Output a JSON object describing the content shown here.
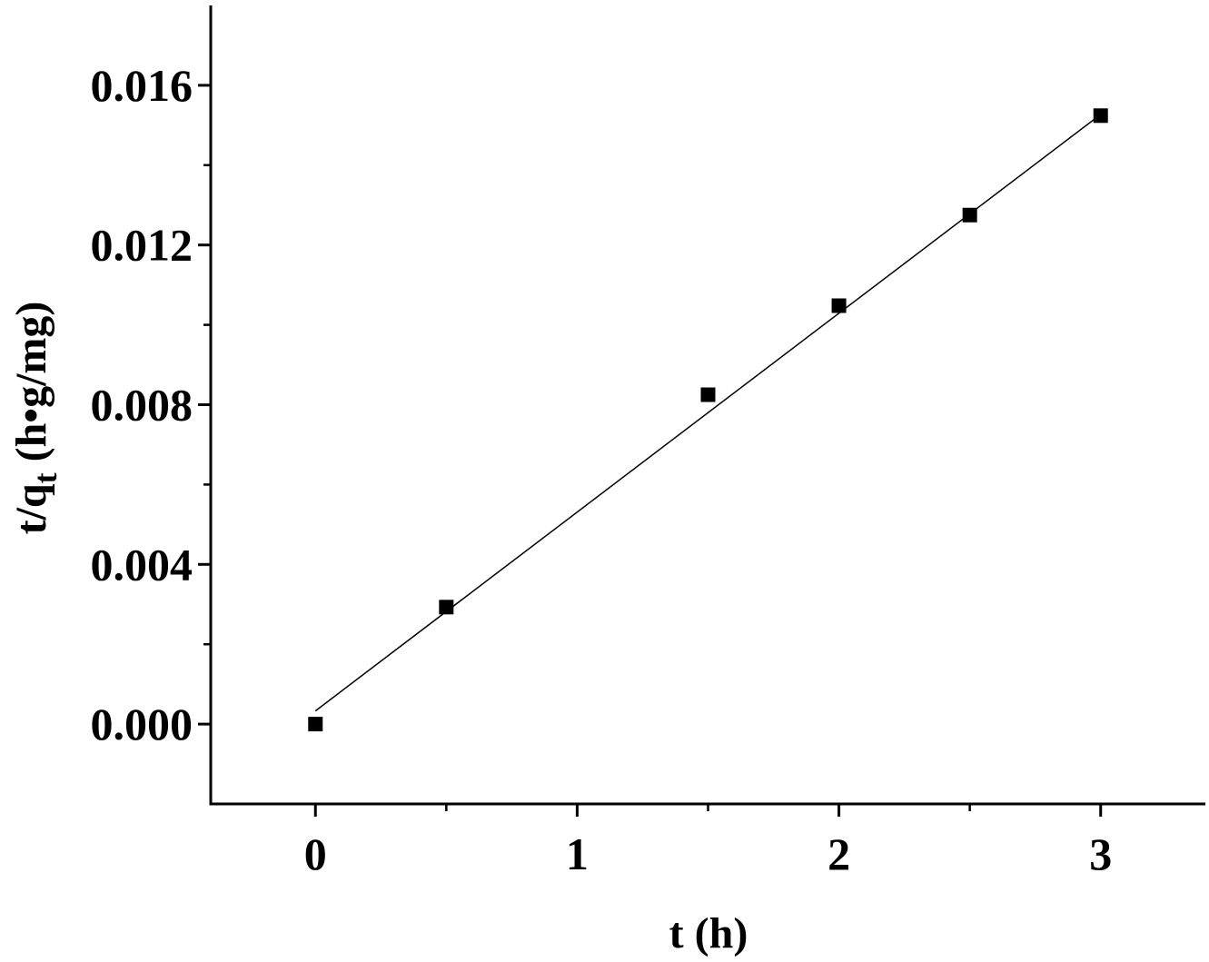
{
  "chart_data": {
    "type": "scatter",
    "xlabel": "t (h)",
    "ylabel": {
      "main": "t/q",
      "subscript": "t",
      "units": " (h•g/mg)"
    },
    "xlim": [
      -0.4,
      3.4
    ],
    "ylim": [
      -0.002,
      0.018
    ],
    "x_ticks": [
      0,
      1,
      2,
      3
    ],
    "x_tick_labels": [
      "0",
      "1",
      "2",
      "3"
    ],
    "x_minor_ticks": [
      0.5,
      1.5,
      2.5
    ],
    "y_ticks": [
      0.0,
      0.004,
      0.008,
      0.012,
      0.016
    ],
    "y_tick_labels": [
      "0.000",
      "0.004",
      "0.008",
      "0.012",
      "0.016"
    ],
    "y_minor_ticks": [
      0.002,
      0.006,
      0.01,
      0.014
    ],
    "grid": false,
    "series": [
      {
        "marker": "square",
        "color": "#000000",
        "points": [
          {
            "x": 0,
            "y": 0.0
          },
          {
            "x": 0.5,
            "y": 0.00293
          },
          {
            "x": 1.5,
            "y": 0.00825
          },
          {
            "x": 2.0,
            "y": 0.01048
          },
          {
            "x": 2.5,
            "y": 0.01275
          },
          {
            "x": 3.0,
            "y": 0.01524
          }
        ]
      }
    ],
    "fit_line": {
      "x_start": 0,
      "x_end": 3.0,
      "y_start": 0.00033,
      "y_end": 0.01527,
      "color": "#000000"
    }
  }
}
